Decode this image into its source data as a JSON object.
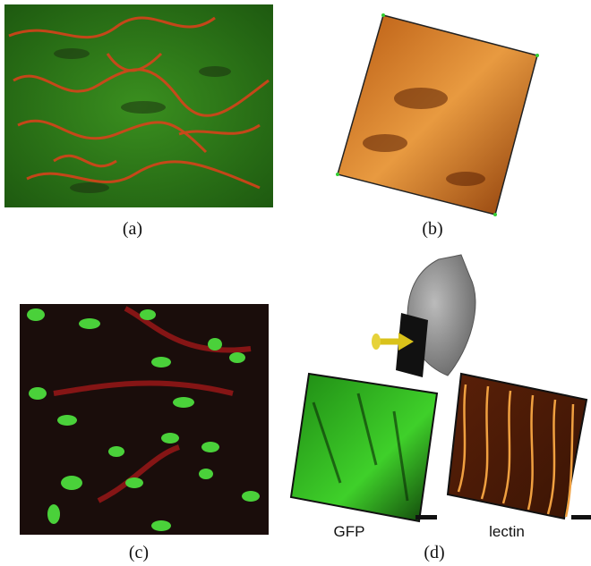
{
  "panels": [
    {
      "label": "(a)"
    },
    {
      "label": "(b)"
    },
    {
      "label": "(c)"
    },
    {
      "label": "(d)",
      "sublabels": [
        "GFP",
        "lectin"
      ]
    }
  ]
}
